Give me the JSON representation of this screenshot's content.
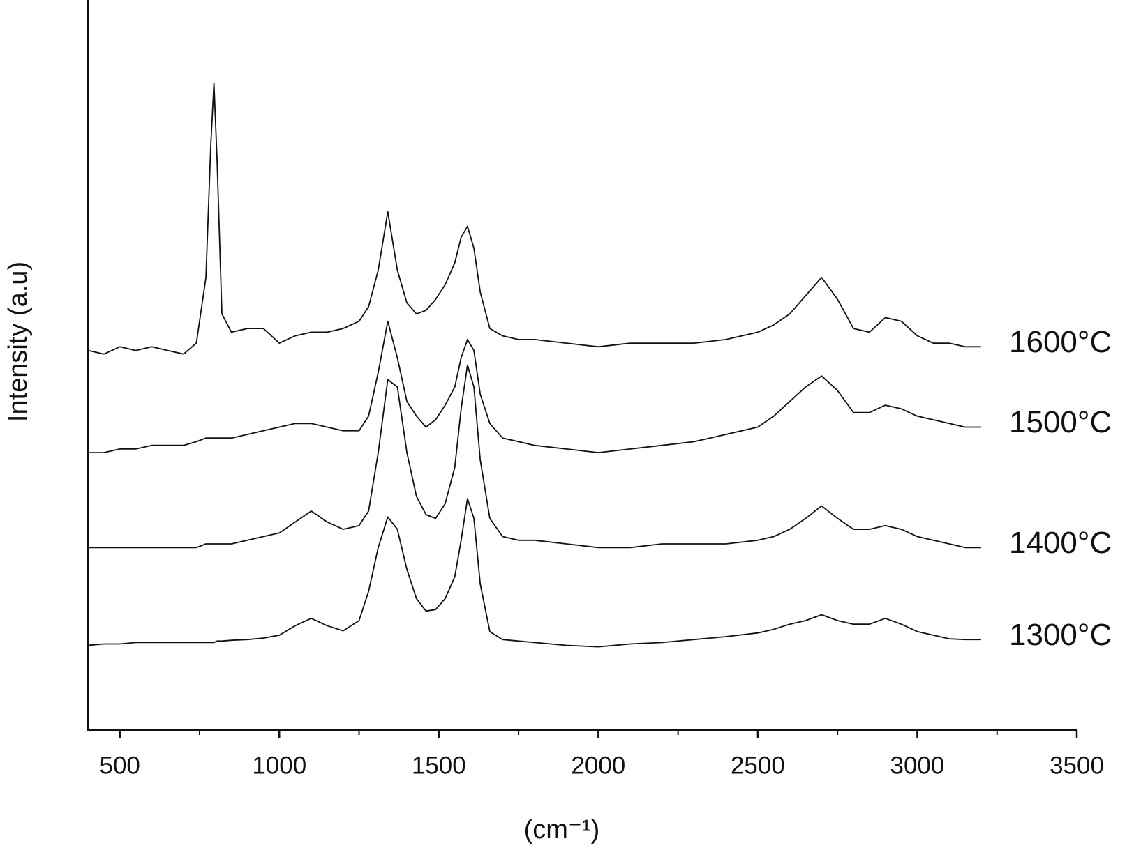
{
  "chart_data": {
    "type": "line",
    "xlabel": "(cm⁻¹)",
    "ylabel": "Intensity   (a.u)",
    "x": [
      400,
      450,
      500,
      550,
      600,
      650,
      700,
      740,
      770,
      785,
      795,
      805,
      820,
      850,
      900,
      950,
      1000,
      1050,
      1100,
      1150,
      1200,
      1250,
      1280,
      1310,
      1340,
      1370,
      1400,
      1430,
      1460,
      1490,
      1520,
      1550,
      1570,
      1590,
      1610,
      1630,
      1660,
      1700,
      1750,
      1800,
      1900,
      2000,
      2100,
      2200,
      2300,
      2400,
      2500,
      2550,
      2600,
      2650,
      2700,
      2750,
      2800,
      2850,
      2900,
      2950,
      3000,
      3050,
      3100,
      3150,
      3200
    ],
    "series": [
      {
        "name": "1600°C",
        "color": "#111111",
        "values": [
          52,
          51.5,
          52.5,
          52,
          52.5,
          52,
          51.5,
          53,
          62,
          80,
          88.6,
          78,
          57,
          54.5,
          55,
          55,
          53,
          54,
          54.5,
          54.5,
          55,
          56,
          58,
          63,
          71,
          63,
          58.5,
          57,
          57.5,
          59,
          61,
          64,
          67.5,
          69,
          66,
          60,
          55,
          54,
          53.5,
          53.5,
          53,
          52.5,
          53,
          53,
          53,
          53.5,
          54.5,
          55.5,
          57,
          59.5,
          62,
          59,
          55,
          54.5,
          56.5,
          56,
          54,
          53,
          53,
          52.5,
          52.5
        ]
      },
      {
        "name": "1500°C",
        "color": "#111111",
        "values": [
          38,
          38,
          38.5,
          38.5,
          39,
          39,
          39,
          39.5,
          40,
          40,
          40,
          40,
          40,
          40,
          40.5,
          41,
          41.5,
          42,
          42,
          41.5,
          41,
          41,
          43,
          49,
          56,
          51,
          45,
          43,
          41.5,
          42.5,
          44.5,
          47,
          51,
          53.5,
          52,
          46,
          42,
          40,
          39.5,
          39,
          38.5,
          38,
          38.5,
          39,
          39.5,
          40.5,
          41.5,
          43,
          45,
          47,
          48.5,
          46.5,
          43.5,
          43.5,
          44.5,
          44,
          43,
          42.5,
          42,
          41.5,
          41.5
        ]
      },
      {
        "name": "1400°C",
        "color": "#111111",
        "values": [
          25,
          25,
          25,
          25,
          25,
          25,
          25,
          25,
          25.5,
          25.5,
          25.5,
          25.5,
          25.5,
          25.5,
          26,
          26.5,
          27,
          28.5,
          30,
          28.5,
          27.5,
          28,
          30,
          38,
          48,
          47,
          38,
          32,
          29.5,
          29,
          31,
          36,
          44,
          50,
          47,
          37,
          29,
          26.5,
          26,
          26,
          25.5,
          25,
          25,
          25.5,
          25.5,
          25.5,
          26,
          26.5,
          27.5,
          29,
          30.7,
          29,
          27.5,
          27.5,
          28,
          27.5,
          26.5,
          26,
          25.5,
          25,
          25
        ]
      },
      {
        "name": "1300°C",
        "color": "#111111",
        "values": [
          11.6,
          11.8,
          11.8,
          12,
          12,
          12,
          12,
          12,
          12,
          12,
          12,
          12.2,
          12.2,
          12.3,
          12.4,
          12.6,
          13,
          14.3,
          15.3,
          14.3,
          13.6,
          15,
          19,
          25,
          29.2,
          27.5,
          22,
          18,
          16.3,
          16.5,
          18,
          21,
          26,
          31.7,
          29,
          20,
          13.5,
          12.4,
          12.2,
          12,
          11.6,
          11.4,
          11.8,
          12,
          12.4,
          12.8,
          13.3,
          13.8,
          14.5,
          15,
          15.8,
          15,
          14.5,
          14.5,
          15.3,
          14.5,
          13.5,
          13,
          12.5,
          12.4,
          12.4
        ]
      }
    ],
    "xlim": [
      400,
      3500
    ],
    "xticks": [
      500,
      1000,
      1500,
      2000,
      2500,
      3000,
      3500
    ],
    "xminor_ticks": [
      750,
      1250,
      1750,
      2250,
      2750,
      3250
    ],
    "ylim": [
      0,
      100
    ]
  }
}
